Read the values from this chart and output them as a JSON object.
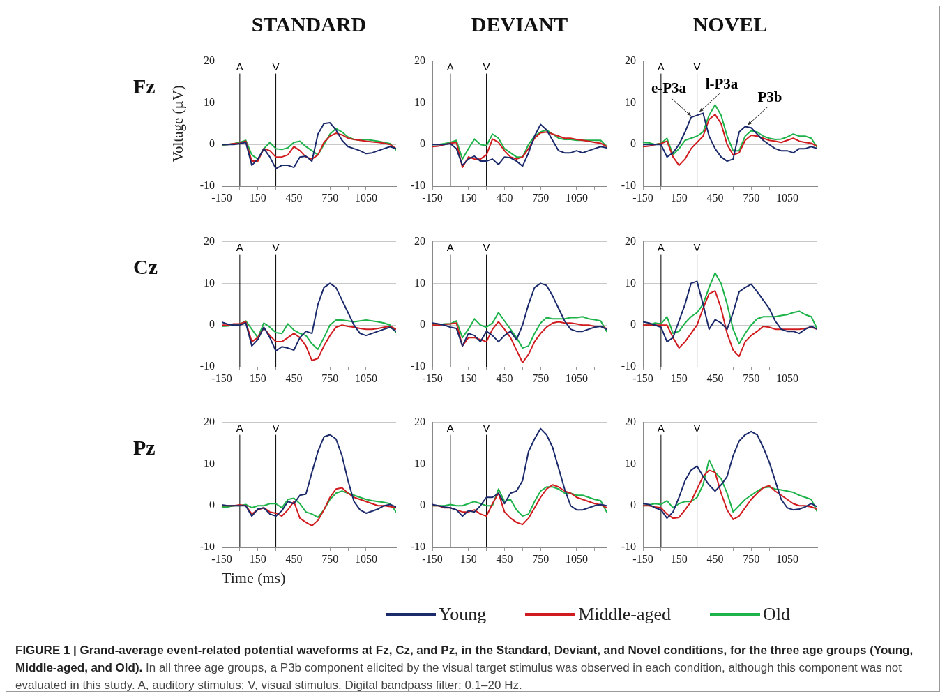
{
  "chart_data": [
    {
      "type": "line",
      "title": "STANDARD",
      "subtitle": "Fz",
      "ylabel": "Voltage (µV)",
      "x": [
        -150,
        -100,
        -50,
        0,
        50,
        100,
        150,
        200,
        250,
        300,
        350,
        400,
        450,
        500,
        550,
        600,
        650,
        700,
        750,
        800,
        850,
        900,
        950,
        1000,
        1050,
        1100,
        1150,
        1200,
        1250,
        1300
      ],
      "xlim": [
        -150,
        1300
      ],
      "xticks": [
        -150,
        {
          "value": 0,
          "label": null
        },
        150,
        {
          "value": 300,
          "label": null
        },
        450,
        {
          "value": 600,
          "label": null
        },
        750,
        {
          "value": 900,
          "label": null
        },
        1050,
        {
          "value": 1200,
          "label": null
        }
      ],
      "ylim": [
        -10,
        20
      ],
      "yticks": [
        -10,
        0,
        10,
        20
      ],
      "grid": "y",
      "ref_lines": [
        {
          "axis": "x",
          "value": 0,
          "label": "A",
          "color": "#000000"
        },
        {
          "axis": "x",
          "value": 300,
          "label": "V",
          "color": "#000000"
        }
      ],
      "series": [
        {
          "color": "#1b2a6b",
          "values": [
            0,
            0,
            0,
            0.2,
            0.5,
            -5,
            -3.5,
            -1,
            -3,
            -5.8,
            -5,
            -5,
            -5.5,
            -3,
            -2.8,
            -4,
            2.5,
            5,
            5.2,
            3.5,
            1,
            -0.5,
            -1,
            -1.5,
            -2.2,
            -2,
            -1.5,
            -1,
            -0.5,
            -1
          ]
        },
        {
          "color": "#d01c1f",
          "values": [
            0,
            0,
            0.2,
            0.3,
            0.8,
            -4,
            -4,
            -1,
            -1.5,
            -3,
            -3,
            -2.5,
            -0.5,
            -1.5,
            -3,
            -3.5,
            -2.5,
            0.5,
            2,
            2.7,
            2.3,
            1.5,
            1.2,
            1,
            0.8,
            0.6,
            0.5,
            0.3,
            0,
            -1
          ]
        },
        {
          "color": "#1db34a",
          "values": [
            -0.2,
            0,
            0.2,
            0.5,
            1,
            -2.5,
            -3.5,
            -1,
            0.5,
            -1,
            -1.2,
            -0.8,
            0.5,
            0.8,
            -0.5,
            -1.5,
            -2.5,
            0,
            2.5,
            3.8,
            3,
            1.8,
            1.2,
            1,
            1.2,
            1,
            0.8,
            0.5,
            0.2,
            -1.3
          ]
        }
      ]
    },
    {
      "type": "line",
      "title": "DEVIANT",
      "x": [
        -150,
        -100,
        -50,
        0,
        50,
        100,
        150,
        200,
        250,
        300,
        350,
        400,
        450,
        500,
        550,
        600,
        650,
        700,
        750,
        800,
        850,
        900,
        950,
        1000,
        1050,
        1100,
        1150,
        1200,
        1250,
        1300
      ],
      "xlim": [
        -150,
        1300
      ],
      "xticks": [
        -150,
        {
          "value": 0,
          "label": null
        },
        150,
        {
          "value": 300,
          "label": null
        },
        450,
        {
          "value": 600,
          "label": null
        },
        750,
        {
          "value": 900,
          "label": null
        },
        1050,
        {
          "value": 1200,
          "label": null
        }
      ],
      "ylim": [
        -10,
        20
      ],
      "yticks": [
        -10,
        0,
        10,
        20
      ],
      "grid": "y",
      "ref_lines": [
        {
          "axis": "x",
          "value": 0,
          "label": "A",
          "color": "#000000"
        },
        {
          "axis": "x",
          "value": 300,
          "label": "V",
          "color": "#000000"
        }
      ],
      "series": [
        {
          "color": "#1b2a6b",
          "values": [
            0,
            0,
            0,
            0.2,
            -1,
            -5,
            -3.5,
            -2.8,
            -4,
            -4,
            -3.5,
            -4.8,
            -3,
            -3.2,
            -4,
            -5.2,
            -2,
            2,
            4.8,
            3.5,
            1,
            -1.5,
            -2,
            -2,
            -1.5,
            -2,
            -1.5,
            -1,
            -0.5,
            -0.8
          ]
        },
        {
          "color": "#d01c1f",
          "values": [
            -0.5,
            -0.4,
            0,
            0.3,
            0.5,
            -5.5,
            -3,
            -3.5,
            -3.5,
            -2.5,
            1.3,
            0.5,
            -1.5,
            -3,
            -3.5,
            -3,
            -1,
            1.5,
            2.8,
            3,
            2.5,
            2,
            1.5,
            1.5,
            1.2,
            1,
            0.8,
            0.5,
            0.3,
            -0.5
          ]
        },
        {
          "color": "#1db34a",
          "values": [
            0,
            0,
            0.2,
            0.5,
            1,
            -3.5,
            -1,
            1.3,
            0,
            -0.3,
            2.5,
            1.5,
            -1,
            -2,
            -3,
            -3,
            0,
            2,
            3,
            3.5,
            2.5,
            1.5,
            1.2,
            1.2,
            1,
            1,
            1,
            1,
            1,
            -0.5
          ]
        }
      ]
    },
    {
      "type": "line",
      "title": "NOVEL",
      "x": [
        -150,
        -100,
        -50,
        0,
        50,
        100,
        150,
        200,
        250,
        300,
        350,
        400,
        450,
        500,
        550,
        600,
        650,
        700,
        750,
        800,
        850,
        900,
        950,
        1000,
        1050,
        1100,
        1150,
        1200,
        1250,
        1300
      ],
      "xlim": [
        -150,
        1300
      ],
      "xticks": [
        -150,
        {
          "value": 0,
          "label": null
        },
        150,
        {
          "value": 300,
          "label": null
        },
        450,
        {
          "value": 600,
          "label": null
        },
        750,
        {
          "value": 900,
          "label": null
        },
        1050,
        {
          "value": 1200,
          "label": null
        }
      ],
      "ylim": [
        -10,
        20
      ],
      "yticks": [
        -10,
        0,
        10,
        20
      ],
      "grid": "y",
      "ref_lines": [
        {
          "axis": "x",
          "value": 0,
          "label": "A",
          "color": "#000000"
        },
        {
          "axis": "x",
          "value": 300,
          "label": "V",
          "color": "#000000"
        }
      ],
      "annotations": [
        {
          "text": "e-P3a",
          "x": 250,
          "y": 6.5
        },
        {
          "text": "l-P3a",
          "x": 320,
          "y": 7.5
        },
        {
          "text": "P3b",
          "x": 720,
          "y": 4.3
        }
      ],
      "series": [
        {
          "color": "#1b2a6b",
          "values": [
            0,
            0,
            0,
            0,
            -3,
            -2,
            0,
            3,
            6.5,
            7,
            7.5,
            2,
            -1,
            -3,
            -4,
            -3.5,
            3,
            4.3,
            4,
            2.5,
            1,
            0,
            -1,
            -1.5,
            -1.5,
            -2,
            -1,
            -1,
            -0.5,
            -1
          ]
        },
        {
          "color": "#d01c1f",
          "values": [
            -0.5,
            -0.4,
            0,
            0.2,
            0.8,
            -3,
            -5,
            -3.5,
            -1,
            0.5,
            2,
            6,
            7.2,
            5,
            0,
            -2.5,
            -2,
            1,
            2.2,
            2,
            1.5,
            1,
            0.8,
            0.5,
            1,
            1.5,
            0.8,
            0.5,
            0.3,
            -0.5
          ]
        },
        {
          "color": "#1db34a",
          "values": [
            0.5,
            0.4,
            0,
            0.3,
            1.5,
            -2.5,
            -1,
            1,
            1.5,
            2,
            3,
            7,
            9.5,
            7,
            2,
            -1.5,
            -1.5,
            2,
            3.3,
            3,
            2,
            1.5,
            1.2,
            1.3,
            1.8,
            2.5,
            2,
            2,
            1.5,
            -0.8
          ]
        }
      ]
    },
    {
      "type": "line",
      "subtitle": "Cz",
      "x": [
        -150,
        -100,
        -50,
        0,
        50,
        100,
        150,
        200,
        250,
        300,
        350,
        400,
        450,
        500,
        550,
        600,
        650,
        700,
        750,
        800,
        850,
        900,
        950,
        1000,
        1050,
        1100,
        1150,
        1200,
        1250,
        1300
      ],
      "xlim": [
        -150,
        1300
      ],
      "xticks": [
        -150,
        {
          "value": 0,
          "label": null
        },
        150,
        {
          "value": 300,
          "label": null
        },
        450,
        {
          "value": 600,
          "label": null
        },
        750,
        {
          "value": 900,
          "label": null
        },
        1050,
        {
          "value": 1200,
          "label": null
        }
      ],
      "ylim": [
        -10,
        20
      ],
      "yticks": [
        -10,
        0,
        10,
        20
      ],
      "grid": "y",
      "ref_lines": [
        {
          "axis": "x",
          "value": 0,
          "label": "A",
          "color": "#000000"
        },
        {
          "axis": "x",
          "value": 300,
          "label": "V",
          "color": "#000000"
        }
      ],
      "series": [
        {
          "color": "#1b2a6b",
          "values": [
            0.7,
            0.2,
            0,
            0,
            0.5,
            -5,
            -3.5,
            -0.5,
            -3,
            -6.2,
            -5.2,
            -5.5,
            -6,
            -3,
            -1.5,
            -2,
            5,
            9,
            10,
            9,
            6,
            3,
            0,
            -2,
            -2.5,
            -2,
            -1.5,
            -1,
            -0.5,
            -1.5
          ]
        },
        {
          "color": "#d01c1f",
          "values": [
            0,
            0,
            0.3,
            0.3,
            0.8,
            -4,
            -3,
            -0.7,
            -2.5,
            -4,
            -4,
            -3,
            -2,
            -3,
            -5,
            -8.5,
            -8,
            -5,
            -2.5,
            -0.5,
            0,
            -0.3,
            -0.5,
            -0.8,
            -1,
            -1,
            -0.8,
            -0.5,
            -0.3,
            -1
          ]
        },
        {
          "color": "#1db34a",
          "values": [
            -0.3,
            -0.2,
            0,
            0.2,
            1,
            -1,
            -3,
            0.5,
            -0.5,
            -1.8,
            -2,
            0.3,
            -1.2,
            -2,
            -2.5,
            -4.5,
            -5.8,
            -3,
            0,
            1.2,
            1.2,
            1,
            0.8,
            1,
            1.2,
            1,
            0.8,
            0.5,
            0,
            -1.8
          ]
        }
      ]
    },
    {
      "type": "line",
      "x": [
        -150,
        -100,
        -50,
        0,
        50,
        100,
        150,
        200,
        250,
        300,
        350,
        400,
        450,
        500,
        550,
        600,
        650,
        700,
        750,
        800,
        850,
        900,
        950,
        1000,
        1050,
        1100,
        1150,
        1200,
        1250,
        1300
      ],
      "xlim": [
        -150,
        1300
      ],
      "xticks": [
        -150,
        {
          "value": 0,
          "label": null
        },
        150,
        {
          "value": 300,
          "label": null
        },
        450,
        {
          "value": 600,
          "label": null
        },
        750,
        {
          "value": 900,
          "label": null
        },
        1050,
        {
          "value": 1200,
          "label": null
        }
      ],
      "ylim": [
        -10,
        20
      ],
      "yticks": [
        -10,
        0,
        10,
        20
      ],
      "grid": "y",
      "ref_lines": [
        {
          "axis": "x",
          "value": 0,
          "label": "A",
          "color": "#000000"
        },
        {
          "axis": "x",
          "value": 300,
          "label": "V",
          "color": "#000000"
        }
      ],
      "series": [
        {
          "color": "#1b2a6b",
          "values": [
            0.5,
            0.3,
            0,
            -0.5,
            -0.8,
            -5,
            -2,
            -2.5,
            -4,
            -1.5,
            -2.5,
            -4,
            -2.5,
            -1.5,
            -3.5,
            0,
            5,
            9,
            10,
            9.5,
            7,
            4,
            1,
            -1,
            -1.5,
            -1.5,
            -1,
            -0.5,
            -0.3,
            -1
          ]
        },
        {
          "color": "#d01c1f",
          "values": [
            0,
            0,
            0.2,
            0.3,
            0.5,
            -5,
            -3,
            -3,
            -3.5,
            -4,
            -1,
            0.8,
            -1,
            -3,
            -6,
            -9,
            -7,
            -4,
            -2,
            -0.5,
            0.5,
            0.8,
            0.5,
            0.5,
            0.3,
            0,
            0,
            -0.3,
            -0.3,
            -0.8
          ]
        },
        {
          "color": "#1db34a",
          "values": [
            0,
            0,
            0.3,
            0.3,
            1,
            -3,
            -1,
            1.5,
            0,
            -0.5,
            0.5,
            3,
            1,
            -1,
            -3,
            -5.5,
            -5,
            -2,
            0.5,
            1.8,
            1.5,
            1.5,
            1.5,
            1.8,
            1.8,
            2,
            1.5,
            1.3,
            1,
            -1.5
          ]
        }
      ]
    },
    {
      "type": "line",
      "x": [
        -150,
        -100,
        -50,
        0,
        50,
        100,
        150,
        200,
        250,
        300,
        350,
        400,
        450,
        500,
        550,
        600,
        650,
        700,
        750,
        800,
        850,
        900,
        950,
        1000,
        1050,
        1100,
        1150,
        1200,
        1250,
        1300
      ],
      "xlim": [
        -150,
        1300
      ],
      "xticks": [
        -150,
        {
          "value": 0,
          "label": null
        },
        150,
        {
          "value": 300,
          "label": null
        },
        450,
        {
          "value": 600,
          "label": null
        },
        750,
        {
          "value": 900,
          "label": null
        },
        1050,
        {
          "value": 1200,
          "label": null
        }
      ],
      "ylim": [
        -10,
        20
      ],
      "yticks": [
        -10,
        0,
        10,
        20
      ],
      "grid": "y",
      "ref_lines": [
        {
          "axis": "x",
          "value": 0,
          "label": "A",
          "color": "#000000"
        },
        {
          "axis": "x",
          "value": 300,
          "label": "V",
          "color": "#000000"
        }
      ],
      "series": [
        {
          "color": "#1b2a6b",
          "values": [
            0.8,
            0.5,
            0,
            -0.5,
            -4,
            -3,
            1,
            5,
            10,
            10.5,
            5,
            -1,
            1.3,
            0.5,
            -1,
            3,
            8,
            9,
            9.8,
            8,
            6,
            4,
            1,
            -1,
            -1.5,
            -1.5,
            -2,
            -1,
            -0.3,
            -1
          ]
        },
        {
          "color": "#d01c1f",
          "values": [
            0,
            0,
            0,
            0,
            0,
            -3,
            -5.5,
            -4,
            -2,
            0,
            4,
            7.5,
            8.2,
            4,
            -2,
            -6,
            -7.5,
            -4,
            -2.5,
            -1.5,
            -0.3,
            -0.5,
            -1,
            -1,
            -1,
            -1,
            -1,
            -0.8,
            -0.5,
            -1
          ]
        },
        {
          "color": "#1db34a",
          "values": [
            0,
            0,
            0.5,
            0.3,
            2,
            -2,
            -1.5,
            0.5,
            2,
            3,
            5,
            9,
            12.5,
            10,
            5,
            -1,
            -4.5,
            -2,
            0,
            1.5,
            2,
            2,
            2,
            2.3,
            2.5,
            3,
            3.3,
            2.5,
            2,
            -1
          ]
        }
      ]
    },
    {
      "type": "line",
      "subtitle": "Pz",
      "xlabel": "Time (ms)",
      "x": [
        -150,
        -100,
        -50,
        0,
        50,
        100,
        150,
        200,
        250,
        300,
        350,
        400,
        450,
        500,
        550,
        600,
        650,
        700,
        750,
        800,
        850,
        900,
        950,
        1000,
        1050,
        1100,
        1150,
        1200,
        1250,
        1300
      ],
      "xlim": [
        -150,
        1300
      ],
      "xticks": [
        -150,
        {
          "value": 0,
          "label": null
        },
        150,
        {
          "value": 300,
          "label": null
        },
        450,
        {
          "value": 600,
          "label": null
        },
        750,
        {
          "value": 900,
          "label": null
        },
        1050,
        {
          "value": 1200,
          "label": null
        }
      ],
      "ylim": [
        -10,
        20
      ],
      "yticks": [
        -10,
        0,
        10,
        20
      ],
      "grid": "y",
      "ref_lines": [
        {
          "axis": "x",
          "value": 0,
          "label": "A",
          "color": "#000000"
        },
        {
          "axis": "x",
          "value": 300,
          "label": "V",
          "color": "#000000"
        }
      ],
      "series": [
        {
          "color": "#1b2a6b",
          "values": [
            0.2,
            0,
            0,
            0,
            0,
            -2.5,
            -0.8,
            -0.5,
            -2,
            -2.5,
            -1.2,
            1,
            0.5,
            2.5,
            2.8,
            8,
            13,
            16.5,
            17,
            16,
            12,
            6,
            1,
            -1,
            -1.8,
            -1.3,
            -0.8,
            0,
            0.3,
            -0.3
          ]
        },
        {
          "color": "#d01c1f",
          "values": [
            0,
            0,
            0,
            0.2,
            0,
            -2,
            -1,
            -0.5,
            -1.5,
            -1.8,
            -2.5,
            -1,
            1,
            -3,
            -4,
            -4.8,
            -3.5,
            -1,
            2,
            4,
            4.3,
            3,
            2,
            1.5,
            1,
            0.5,
            0,
            0,
            -0.2,
            -0.5
          ]
        },
        {
          "color": "#1db34a",
          "values": [
            -0.3,
            -0.3,
            0,
            0,
            0.3,
            -0.5,
            0,
            0,
            0.5,
            0.5,
            -0.5,
            1.5,
            1.8,
            0.5,
            -1.5,
            -2,
            -2.8,
            -1,
            1.5,
            3,
            3.5,
            3,
            2.5,
            2,
            1.5,
            1.2,
            1,
            0.8,
            0.5,
            -1.5
          ]
        }
      ]
    },
    {
      "type": "line",
      "legend": "bottom",
      "x": [
        -150,
        -100,
        -50,
        0,
        50,
        100,
        150,
        200,
        250,
        300,
        350,
        400,
        450,
        500,
        550,
        600,
        650,
        700,
        750,
        800,
        850,
        900,
        950,
        1000,
        1050,
        1100,
        1150,
        1200,
        1250,
        1300
      ],
      "xlim": [
        -150,
        1300
      ],
      "xticks": [
        -150,
        {
          "value": 0,
          "label": null
        },
        150,
        {
          "value": 300,
          "label": null
        },
        450,
        {
          "value": 600,
          "label": null
        },
        750,
        {
          "value": 900,
          "label": null
        },
        1050,
        {
          "value": 1200,
          "label": null
        }
      ],
      "ylim": [
        -10,
        20
      ],
      "yticks": [
        -10,
        0,
        10,
        20
      ],
      "grid": "y",
      "ref_lines": [
        {
          "axis": "x",
          "value": 0,
          "label": "A",
          "color": "#000000"
        },
        {
          "axis": "x",
          "value": 300,
          "label": "V",
          "color": "#000000"
        }
      ],
      "series": [
        {
          "name": "Young",
          "color": "#1b2a6b",
          "values": [
            0.3,
            0,
            -0.3,
            -0.5,
            -1,
            -2.5,
            -1.2,
            -1.5,
            0,
            2,
            2,
            3,
            0.5,
            3,
            3.5,
            6,
            13,
            16,
            18.5,
            17,
            14,
            9,
            4,
            0,
            -1,
            -1,
            -0.5,
            0,
            0.3,
            0
          ]
        },
        {
          "name": "Middle-aged",
          "color": "#d01c1f",
          "values": [
            0,
            0,
            -0.5,
            -0.5,
            -1,
            -1.5,
            -1.5,
            -1,
            -2,
            -2.5,
            0.5,
            3,
            -1.5,
            -3,
            -4,
            -4.5,
            -3,
            -0.5,
            2,
            4,
            5,
            4.5,
            3.5,
            3,
            2,
            1.5,
            1,
            0.5,
            0.2,
            -0.5
          ]
        },
        {
          "name": "Old",
          "color": "#1db34a",
          "values": [
            0,
            0,
            0,
            0.3,
            0,
            0,
            0.5,
            1,
            0.5,
            0,
            0,
            4,
            1,
            1.5,
            -1,
            -2.5,
            -2,
            1,
            3.5,
            4.5,
            4.5,
            4,
            3,
            3,
            2.5,
            2.5,
            2,
            1.5,
            1.2,
            -1.5
          ]
        }
      ]
    },
    {
      "type": "line",
      "x": [
        -150,
        -100,
        -50,
        0,
        50,
        100,
        150,
        200,
        250,
        300,
        350,
        400,
        450,
        500,
        550,
        600,
        650,
        700,
        750,
        800,
        850,
        900,
        950,
        1000,
        1050,
        1100,
        1150,
        1200,
        1250,
        1300
      ],
      "xlim": [
        -150,
        1300
      ],
      "xticks": [
        -150,
        {
          "value": 0,
          "label": null
        },
        150,
        {
          "value": 300,
          "label": null
        },
        450,
        {
          "value": 600,
          "label": null
        },
        750,
        {
          "value": 900,
          "label": null
        },
        1050,
        {
          "value": 1200,
          "label": null
        }
      ],
      "ylim": [
        -10,
        20
      ],
      "yticks": [
        -10,
        0,
        10,
        20
      ],
      "grid": "y",
      "ref_lines": [
        {
          "axis": "x",
          "value": 0,
          "label": "A",
          "color": "#000000"
        },
        {
          "axis": "x",
          "value": 300,
          "label": "V",
          "color": "#000000"
        }
      ],
      "annotations": [
        "FIGURE 1 | Grand-average event-related potential waveforms at Fz, Cz, and Pz, in the Standard, Deviant, and Novel conditions, for the three age groups (Young, Middle-aged, and Old).",
        "In all three age groups, a P3b component elicited by the visual target stimulus was observed in each condition, although this component was not evaluated in this study. A, auditory stimulus; V, visual stimulus. Digital bandpass filter: 0.1–20 Hz."
      ],
      "series": [
        {
          "color": "#1b2a6b",
          "values": [
            0.5,
            0.3,
            -0.5,
            -1,
            -3,
            -1.5,
            2,
            6,
            8.5,
            9.5,
            7,
            5,
            3.5,
            5,
            7,
            12,
            15.5,
            17,
            17.8,
            17,
            14,
            10.5,
            6,
            1.5,
            -0.5,
            -1,
            -0.8,
            -0.3,
            0.5,
            -0.3
          ]
        },
        {
          "color": "#d01c1f",
          "values": [
            0,
            0,
            -0.3,
            -0.5,
            -2,
            -3,
            -2.8,
            -1,
            1,
            4,
            7,
            8.5,
            8,
            3,
            -1,
            -3.3,
            -2.5,
            -0.5,
            1.5,
            3,
            4.3,
            4.8,
            3.5,
            2.5,
            1.5,
            0.5,
            0,
            0,
            -0.3,
            -0.8
          ]
        },
        {
          "color": "#1db34a",
          "values": [
            0,
            0.2,
            0.5,
            0.3,
            1.2,
            -0.5,
            0.5,
            1,
            1,
            2,
            5,
            11,
            8,
            6.5,
            3,
            -1.5,
            0,
            1.5,
            2.5,
            3.5,
            4.3,
            4.5,
            4,
            3.8,
            3.5,
            3.2,
            2.5,
            2,
            1.5,
            -1.5
          ]
        }
      ]
    }
  ]
}
